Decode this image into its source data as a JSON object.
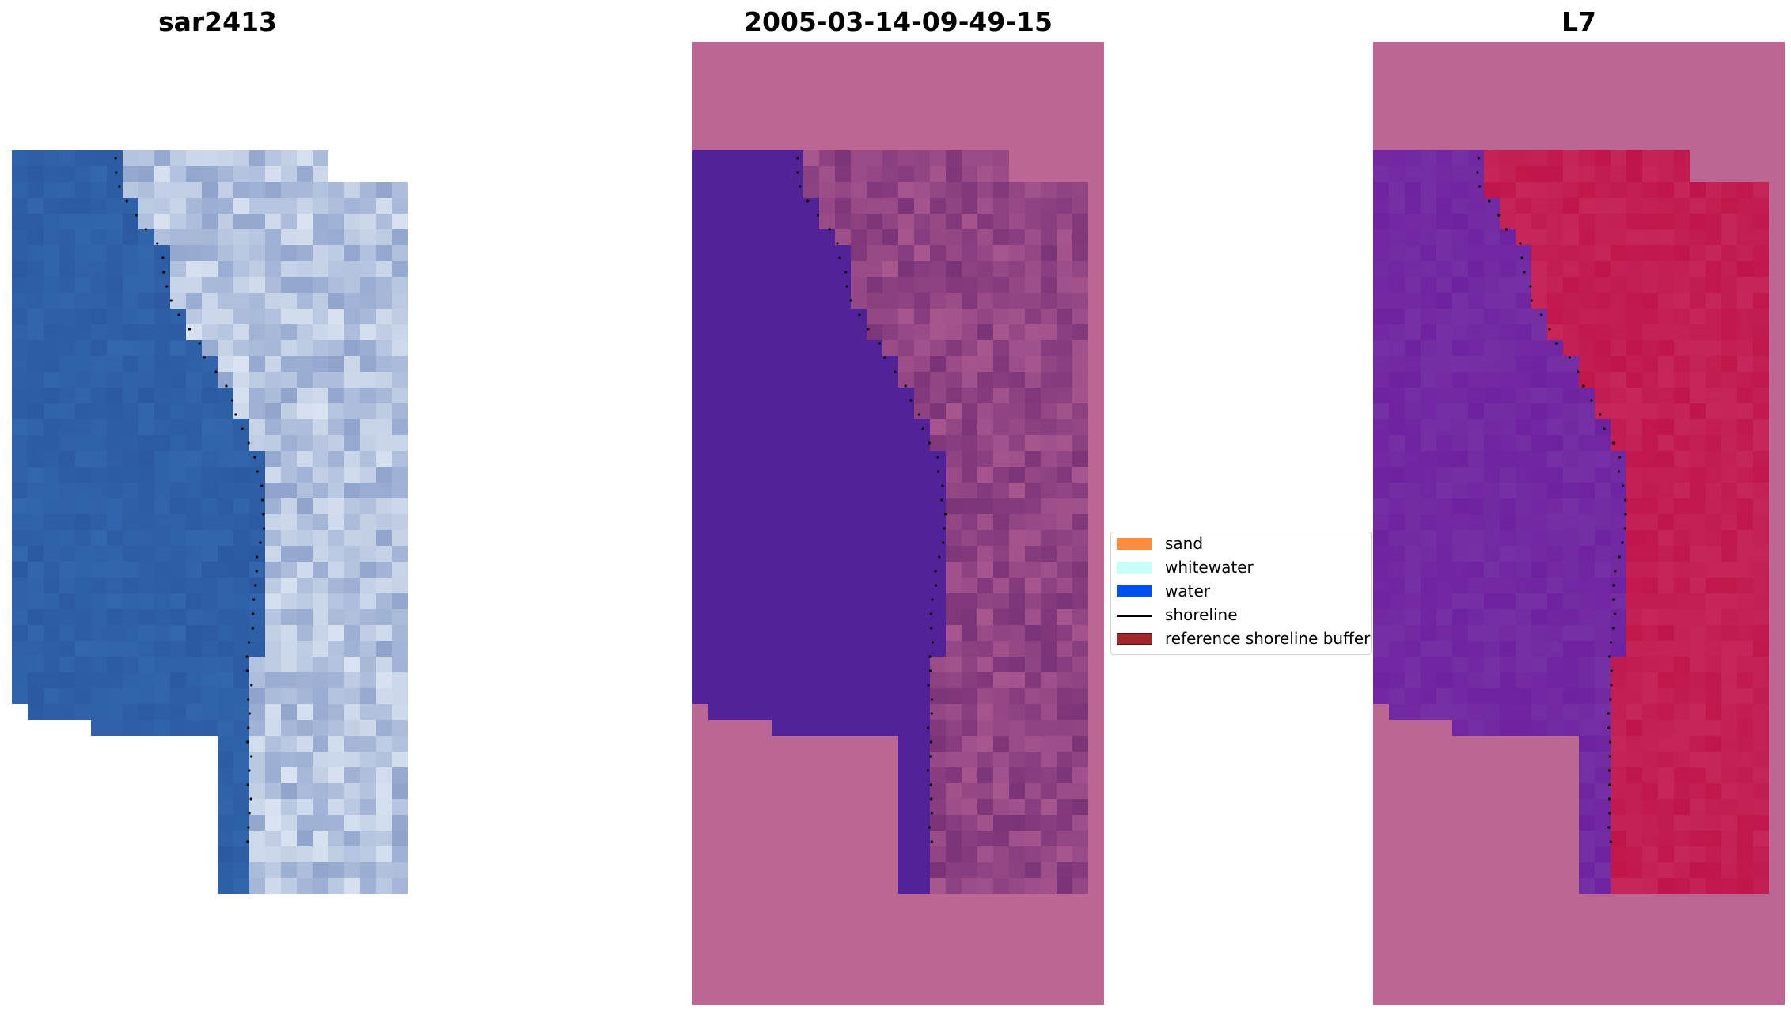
{
  "panels": [
    {
      "title": "sar2413",
      "kind": "rgb"
    },
    {
      "title": "2005-03-14-09-49-15",
      "kind": "classified"
    },
    {
      "title": "L7",
      "kind": "index"
    }
  ],
  "legend": {
    "items": [
      {
        "label": "sand",
        "color": "#ff8c3c",
        "kind": "patch"
      },
      {
        "label": "whitewater",
        "color": "#c8fff6",
        "kind": "patch"
      },
      {
        "label": "water",
        "color": "#0050f0",
        "kind": "patch"
      },
      {
        "label": "shoreline",
        "color": "#000000",
        "kind": "line"
      },
      {
        "label": "reference shoreline buffer",
        "color": "#a0282d",
        "kind": "patch"
      }
    ]
  },
  "colors": {
    "buffer_overlay": "#bc6694",
    "classified_water": "#522299",
    "classified_land_dark": "#7a3378",
    "classified_land_light": "#a8568e",
    "rgb_water": "#2b5aa2",
    "rgb_land": "#8fa3cc",
    "index_water": "#6e22a0",
    "index_land": "#c0154a"
  }
}
